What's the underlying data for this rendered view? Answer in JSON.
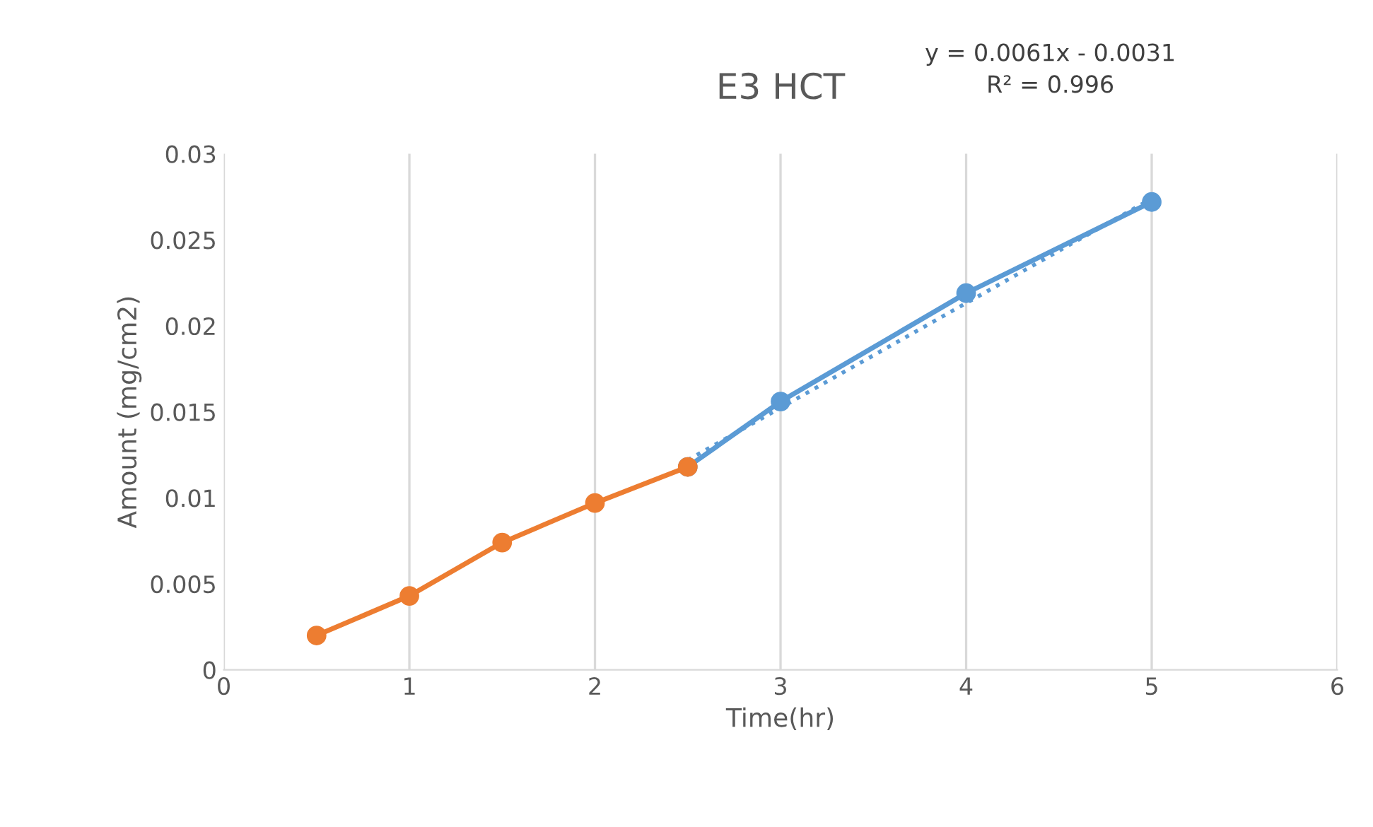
{
  "chart_data": {
    "type": "line",
    "title": "E3 HCT",
    "xlabel": "Time(hr)",
    "ylabel": "Amount (mg/cm2)",
    "series": [
      {
        "color": "#ed7d31",
        "x": [
          0.5,
          1,
          1.5,
          2,
          2.5
        ],
        "values": [
          0.002,
          0.0043,
          0.0074,
          0.0097,
          0.0118
        ],
        "marker": "circle",
        "line_style": "solid"
      },
      {
        "color": "#5b9bd5",
        "x": [
          2.5,
          3,
          4,
          5
        ],
        "values": [
          0.0118,
          0.0156,
          0.0219,
          0.0272
        ],
        "marker": "circle",
        "line_style": "solid"
      },
      {
        "color": "#5b9bd5",
        "x": [
          2.5,
          5
        ],
        "values": [
          0.0122,
          0.0274
        ],
        "marker": "none",
        "line_style": "dotted"
      }
    ],
    "annotations": [
      "y = 0.0061x - 0.0031\nR² = 0.996"
    ],
    "xlim": [
      0,
      6
    ],
    "xticks": [
      0,
      1,
      2,
      3,
      4,
      5,
      6
    ],
    "ylim": [
      0,
      0.03
    ],
    "yticks": [
      0,
      0.005,
      0.01,
      0.015,
      0.02,
      0.025,
      0.03
    ],
    "grid": "x",
    "legend": false
  }
}
